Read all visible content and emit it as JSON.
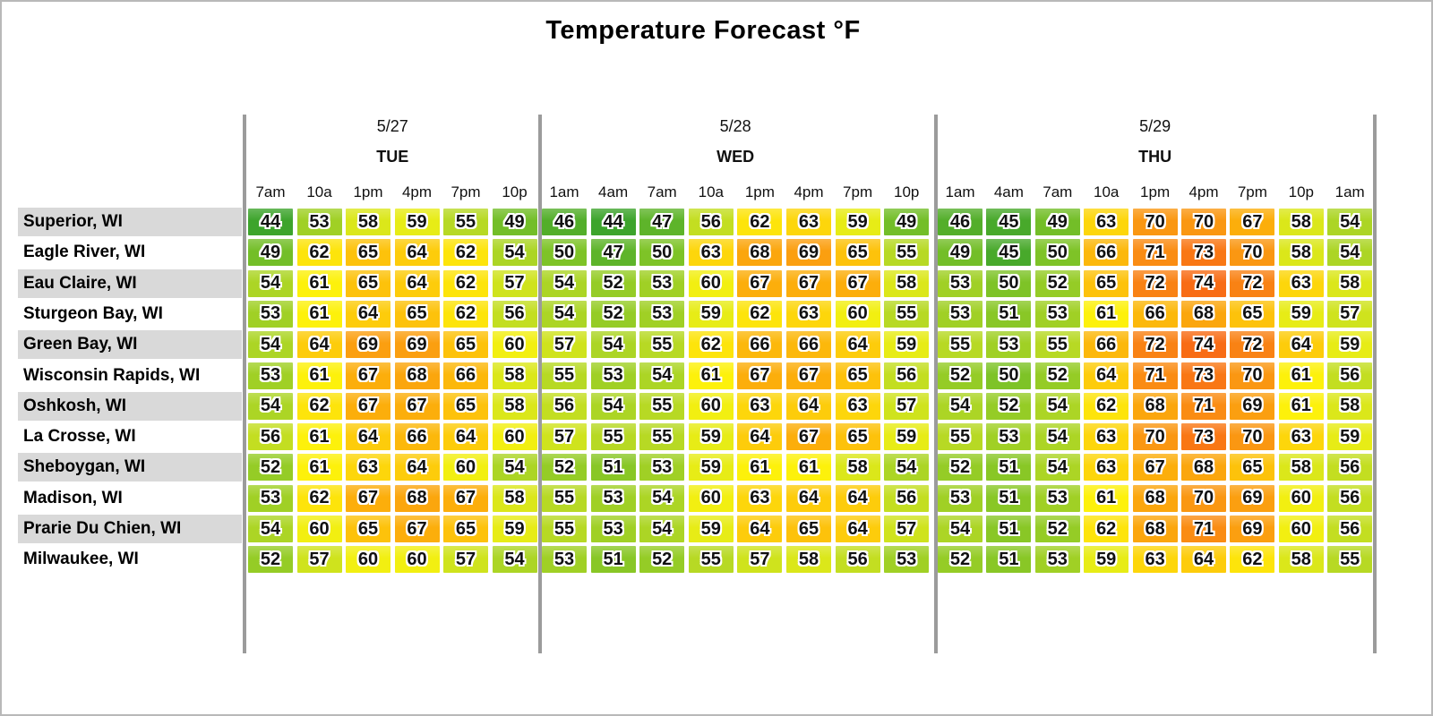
{
  "title": "Temperature Forecast °F",
  "colors": {
    "label_band_gray": "#d9d9d9",
    "divider_gray": "#9b9b9b",
    "text": "#111111"
  },
  "chart_data": {
    "type": "heatmap",
    "title": "Temperature Forecast °F",
    "unit": "°F",
    "value_range": [
      44,
      74
    ],
    "legend_position": "none",
    "days": [
      {
        "date": "5/27",
        "weekday": "TUE",
        "times": [
          "7am",
          "10a",
          "1pm",
          "4pm",
          "7pm",
          "10p"
        ]
      },
      {
        "date": "5/28",
        "weekday": "WED",
        "times": [
          "1am",
          "4am",
          "7am",
          "10a",
          "1pm",
          "4pm",
          "7pm",
          "10p"
        ]
      },
      {
        "date": "5/29",
        "weekday": "THU",
        "times": [
          "1am",
          "4am",
          "7am",
          "10a",
          "1pm",
          "4pm",
          "7pm",
          "10p",
          "1am"
        ]
      }
    ],
    "series": [
      {
        "city": "Superior, WI",
        "temps_by_day": [
          [
            44,
            53,
            58,
            59,
            55,
            49
          ],
          [
            46,
            44,
            47,
            56,
            62,
            63,
            59,
            49
          ],
          [
            46,
            45,
            49,
            63,
            70,
            70,
            67,
            58,
            54
          ]
        ]
      },
      {
        "city": "Eagle River, WI",
        "temps_by_day": [
          [
            49,
            62,
            65,
            64,
            62,
            54
          ],
          [
            50,
            47,
            50,
            63,
            68,
            69,
            65,
            55
          ],
          [
            49,
            45,
            50,
            66,
            71,
            73,
            70,
            58,
            54
          ]
        ]
      },
      {
        "city": "Eau Claire, WI",
        "temps_by_day": [
          [
            54,
            61,
            65,
            64,
            62,
            57
          ],
          [
            54,
            52,
            53,
            60,
            67,
            67,
            67,
            58
          ],
          [
            53,
            50,
            52,
            65,
            72,
            74,
            72,
            63,
            58
          ]
        ]
      },
      {
        "city": "Sturgeon Bay, WI",
        "temps_by_day": [
          [
            53,
            61,
            64,
            65,
            62,
            56
          ],
          [
            54,
            52,
            53,
            59,
            62,
            63,
            60,
            55
          ],
          [
            53,
            51,
            53,
            61,
            66,
            68,
            65,
            59,
            57
          ]
        ]
      },
      {
        "city": "Green Bay, WI",
        "temps_by_day": [
          [
            54,
            64,
            69,
            69,
            65,
            60
          ],
          [
            57,
            54,
            55,
            62,
            66,
            66,
            64,
            59
          ],
          [
            55,
            53,
            55,
            66,
            72,
            74,
            72,
            64,
            59
          ]
        ]
      },
      {
        "city": "Wisconsin Rapids, WI",
        "temps_by_day": [
          [
            53,
            61,
            67,
            68,
            66,
            58
          ],
          [
            55,
            53,
            54,
            61,
            67,
            67,
            65,
            56
          ],
          [
            52,
            50,
            52,
            64,
            71,
            73,
            70,
            61,
            56
          ]
        ]
      },
      {
        "city": "Oshkosh, WI",
        "temps_by_day": [
          [
            54,
            62,
            67,
            67,
            65,
            58
          ],
          [
            56,
            54,
            55,
            60,
            63,
            64,
            63,
            57
          ],
          [
            54,
            52,
            54,
            62,
            68,
            71,
            69,
            61,
            58
          ]
        ]
      },
      {
        "city": "La Crosse, WI",
        "temps_by_day": [
          [
            56,
            61,
            64,
            66,
            64,
            60
          ],
          [
            57,
            55,
            55,
            59,
            64,
            67,
            65,
            59
          ],
          [
            55,
            53,
            54,
            63,
            70,
            73,
            70,
            63,
            59
          ]
        ]
      },
      {
        "city": "Sheboygan, WI",
        "temps_by_day": [
          [
            52,
            61,
            63,
            64,
            60,
            54
          ],
          [
            52,
            51,
            53,
            59,
            61,
            61,
            58,
            54
          ],
          [
            52,
            51,
            54,
            63,
            67,
            68,
            65,
            58,
            56
          ]
        ]
      },
      {
        "city": "Madison, WI",
        "temps_by_day": [
          [
            53,
            62,
            67,
            68,
            67,
            58
          ],
          [
            55,
            53,
            54,
            60,
            63,
            64,
            64,
            56
          ],
          [
            53,
            51,
            53,
            61,
            68,
            70,
            69,
            60,
            56
          ]
        ]
      },
      {
        "city": "Prarie Du Chien, WI",
        "temps_by_day": [
          [
            54,
            60,
            65,
            67,
            65,
            59
          ],
          [
            55,
            53,
            54,
            59,
            64,
            65,
            64,
            57
          ],
          [
            54,
            51,
            52,
            62,
            68,
            71,
            69,
            60,
            56
          ]
        ]
      },
      {
        "city": "Milwaukee, WI",
        "temps_by_day": [
          [
            52,
            57,
            60,
            60,
            57,
            54
          ],
          [
            53,
            51,
            52,
            55,
            57,
            58,
            56,
            53
          ],
          [
            52,
            51,
            53,
            59,
            63,
            64,
            62,
            58,
            55
          ]
        ]
      }
    ],
    "color_scale": {
      "stops": [
        [
          44,
          "#3da42c"
        ],
        [
          50,
          "#7ec327"
        ],
        [
          55,
          "#b7d924"
        ],
        [
          59,
          "#e7ec16"
        ],
        [
          61,
          "#fdf10b"
        ],
        [
          63,
          "#fdd60b"
        ],
        [
          67,
          "#fcae0b"
        ],
        [
          70,
          "#fa9712"
        ],
        [
          74,
          "#f86c15"
        ]
      ]
    }
  }
}
